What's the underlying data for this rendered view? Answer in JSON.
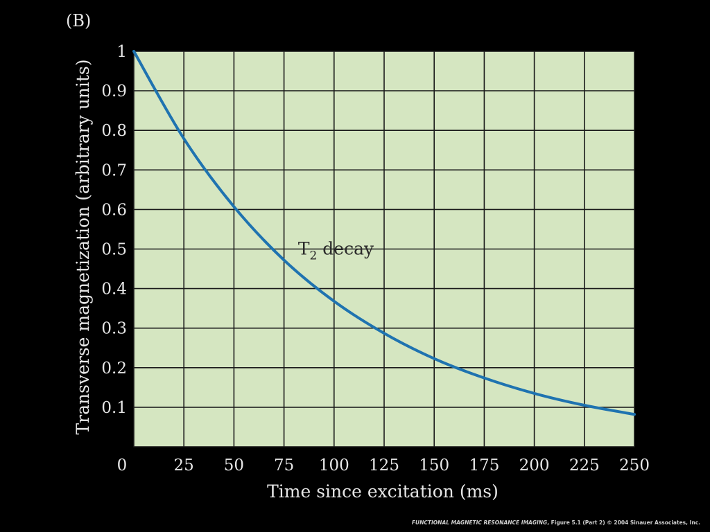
{
  "panel_label": "(B)",
  "credit": {
    "title": "FUNCTIONAL MAGNETIC RESONANCE IMAGING",
    "rest": ", Figure 5.1 (Part 2)  © 2004 Sinauer Associates, Inc."
  },
  "colors": {
    "plot_background": "#d5e6c1",
    "grid": "#1a1a1a",
    "curve": "#1f73b0",
    "page_background": "#000000"
  },
  "chart_data": {
    "type": "line",
    "title": "",
    "xlabel": "Time since excitation (ms)",
    "ylabel": "Transverse magnetization (arbitrary units)",
    "xlim": [
      0,
      250
    ],
    "ylim": [
      0,
      1
    ],
    "x_ticks": [
      "0",
      "25",
      "50",
      "75",
      "100",
      "125",
      "150",
      "175",
      "200",
      "225",
      "250"
    ],
    "y_ticks": [
      "0.1",
      "0.2",
      "0.3",
      "0.4",
      "0.5",
      "0.6",
      "0.7",
      "0.8",
      "0.9",
      "1"
    ],
    "grid": true,
    "series": [
      {
        "x": [
          0,
          25,
          50,
          75,
          100,
          125,
          150,
          175,
          200,
          225,
          250
        ],
        "y": [
          1.0,
          0.779,
          0.607,
          0.472,
          0.368,
          0.287,
          0.223,
          0.174,
          0.135,
          0.105,
          0.082
        ]
      }
    ],
    "annotation": {
      "text": "T",
      "subscript": "2",
      "suffix": " decay",
      "x": 82,
      "y": 0.5
    }
  }
}
